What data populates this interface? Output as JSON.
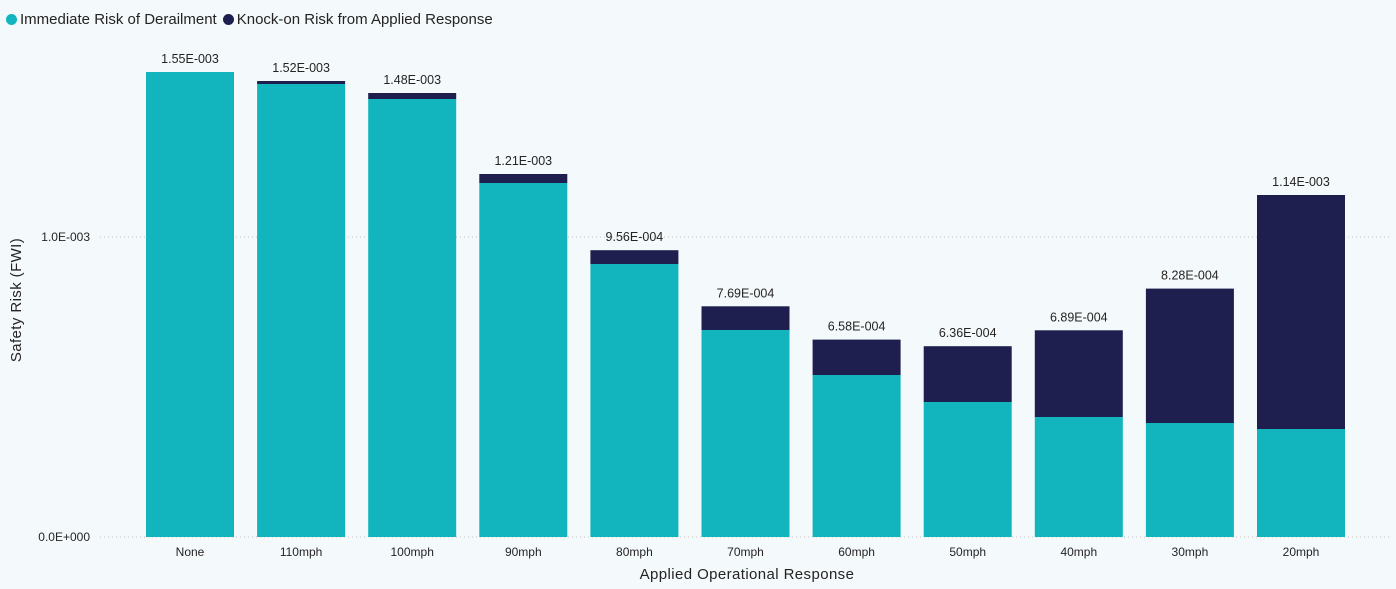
{
  "legend": {
    "items": [
      {
        "label": "Immediate Risk of Derailment",
        "color": "#12b5bd"
      },
      {
        "label": "Knock-on Risk from Applied Response",
        "color": "#1f1f4f"
      }
    ]
  },
  "chart_data": {
    "type": "bar",
    "stacked": true,
    "categories": [
      "None",
      "110mph",
      "100mph",
      "90mph",
      "80mph",
      "70mph",
      "60mph",
      "50mph",
      "40mph",
      "30mph",
      "20mph"
    ],
    "series": [
      {
        "name": "Immediate Risk of Derailment",
        "color": "#12b5bd",
        "values": [
          0.00155,
          0.00151,
          0.00146,
          0.00118,
          0.00091,
          0.00069,
          0.00054,
          0.00045,
          0.0004,
          0.00038,
          0.00036
        ]
      },
      {
        "name": "Knock-on Risk from Applied Response",
        "color": "#1f1f4f",
        "values": [
          0.0,
          1e-05,
          2e-05,
          3e-05,
          4.6e-05,
          7.9e-05,
          0.000118,
          0.000186,
          0.000289,
          0.000448,
          0.00078
        ]
      }
    ],
    "totals": [
      0.00155,
      0.00152,
      0.00148,
      0.00121,
      0.000956,
      0.000769,
      0.000658,
      0.000636,
      0.000689,
      0.000828,
      0.00114
    ],
    "total_labels": [
      "1.55E-003",
      "1.52E-003",
      "1.48E-003",
      "1.21E-003",
      "9.56E-004",
      "7.69E-004",
      "6.58E-004",
      "6.36E-004",
      "6.89E-004",
      "8.28E-004",
      "1.14E-003"
    ],
    "xlabel": "Applied Operational Response",
    "ylabel": "Safety Risk (FWI)",
    "ylim": [
      0,
      0.00155
    ],
    "yticks": [
      0,
      0.001
    ],
    "ytick_labels": [
      "0.0E+000",
      "1.0E-003"
    ],
    "grid": true,
    "legend_position": "top-left"
  }
}
